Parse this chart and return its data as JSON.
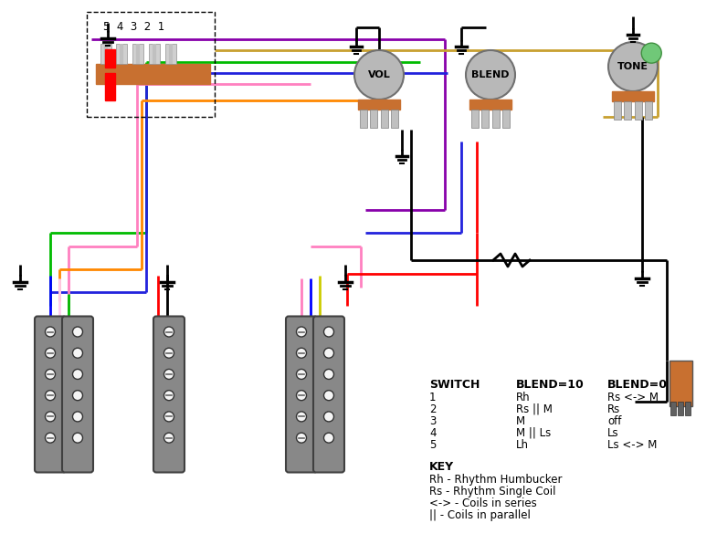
{
  "bg_color": "#ffffff",
  "text_table": {
    "switch_header": "SWITCH",
    "blend10_header": "BLEND=10",
    "blend0_header": "BLEND=0",
    "rows": [
      [
        "1",
        "Rh",
        "Rs <-> M"
      ],
      [
        "2",
        "Rs || M",
        "Rs"
      ],
      [
        "3",
        "M",
        "off"
      ],
      [
        "4",
        "M || Ls",
        "Ls"
      ],
      [
        "5",
        "Lh",
        "Ls <-> M"
      ]
    ],
    "key_header": "KEY",
    "key_lines": [
      "Rh - Rhythm Humbucker",
      "Rs - Rhythm Single Coil",
      "<-> - Coils in series",
      "|| - Coils in parallel"
    ]
  }
}
